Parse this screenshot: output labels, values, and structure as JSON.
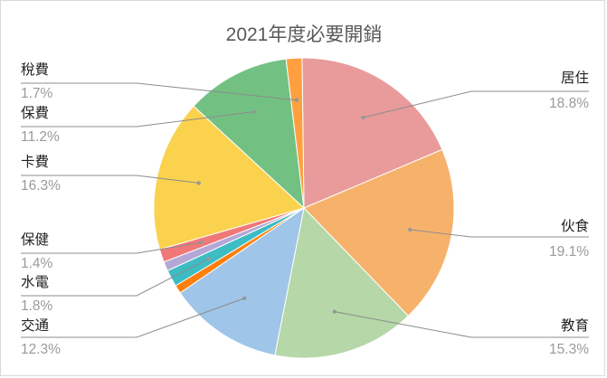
{
  "chart_data": {
    "type": "pie",
    "title": "2021年度必要開銷",
    "slices": [
      {
        "label": "居住",
        "percent_label": "18.8%",
        "value": 18.8,
        "color": "#E99A9A"
      },
      {
        "label": "伙食",
        "percent_label": "19.1%",
        "value": 19.1,
        "color": "#F6B26B"
      },
      {
        "label": "教育",
        "percent_label": "15.3%",
        "value": 15.3,
        "color": "#B6D7A8"
      },
      {
        "label": "交通",
        "percent_label": "12.3%",
        "value": 12.3,
        "color": "#9FC5E8"
      },
      {
        "label": "",
        "percent_label": "",
        "value": 0.9,
        "color": "#FF7F0E"
      },
      {
        "label": "水電",
        "percent_label": "1.8%",
        "value": 1.8,
        "color": "#3DBCC4"
      },
      {
        "label": "",
        "percent_label": "",
        "value": 1.0,
        "color": "#B4A7D6"
      },
      {
        "label": "保健",
        "percent_label": "1.4%",
        "value": 1.4,
        "color": "#F07878"
      },
      {
        "label": "卡費",
        "percent_label": "16.3%",
        "value": 16.3,
        "color": "#FBD24E"
      },
      {
        "label": "保費",
        "percent_label": "11.2%",
        "value": 11.2,
        "color": "#72C183"
      },
      {
        "label": "稅費",
        "percent_label": "1.7%",
        "value": 1.7,
        "color": "#FFA040"
      }
    ],
    "legend": "none",
    "data_labels": "outside-with-leader-lines"
  }
}
